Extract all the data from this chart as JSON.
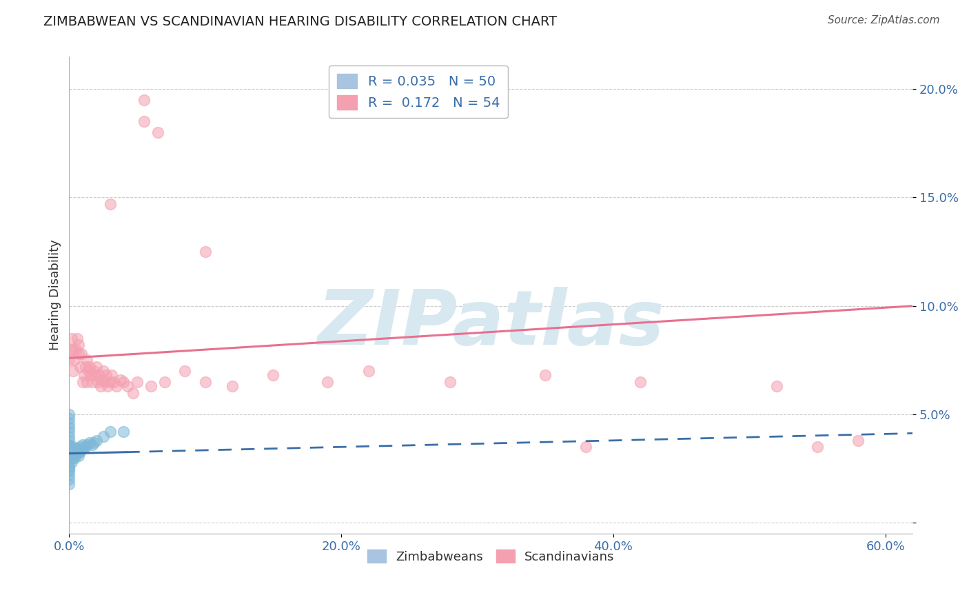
{
  "title": "ZIMBABWEAN VS SCANDINAVIAN HEARING DISABILITY CORRELATION CHART",
  "source": "Source: ZipAtlas.com",
  "xlim": [
    0.0,
    0.62
  ],
  "ylim": [
    -0.005,
    0.215
  ],
  "ylabel": "Hearing Disability",
  "legend_entries": [
    {
      "label": "R = 0.035   N = 50",
      "color": "#a8c4e0"
    },
    {
      "label": "R =  0.172   N = 54",
      "color": "#f4a0b0"
    }
  ],
  "zimbabwean_x": [
    0.0,
    0.0,
    0.0,
    0.0,
    0.0,
    0.0,
    0.0,
    0.0,
    0.0,
    0.0,
    0.0,
    0.0,
    0.0,
    0.0,
    0.0,
    0.0,
    0.0,
    0.0,
    0.0,
    0.0,
    0.001,
    0.001,
    0.002,
    0.002,
    0.002,
    0.003,
    0.003,
    0.003,
    0.004,
    0.004,
    0.005,
    0.005,
    0.006,
    0.006,
    0.007,
    0.007,
    0.008,
    0.008,
    0.009,
    0.01,
    0.01,
    0.012,
    0.013,
    0.015,
    0.017,
    0.018,
    0.02,
    0.025,
    0.03,
    0.04
  ],
  "zimbabwean_y": [
    0.025,
    0.028,
    0.032,
    0.034,
    0.036,
    0.038,
    0.04,
    0.042,
    0.044,
    0.046,
    0.048,
    0.05,
    0.022,
    0.024,
    0.026,
    0.03,
    0.033,
    0.035,
    0.02,
    0.018,
    0.032,
    0.035,
    0.028,
    0.031,
    0.034,
    0.03,
    0.032,
    0.035,
    0.03,
    0.033,
    0.032,
    0.034,
    0.032,
    0.034,
    0.031,
    0.033,
    0.033,
    0.035,
    0.034,
    0.034,
    0.036,
    0.035,
    0.036,
    0.037,
    0.036,
    0.037,
    0.038,
    0.04,
    0.042,
    0.042
  ],
  "scandinavian_x": [
    0.0,
    0.001,
    0.002,
    0.003,
    0.003,
    0.004,
    0.005,
    0.006,
    0.007,
    0.007,
    0.008,
    0.009,
    0.01,
    0.011,
    0.012,
    0.013,
    0.013,
    0.014,
    0.015,
    0.016,
    0.017,
    0.018,
    0.019,
    0.02,
    0.021,
    0.022,
    0.023,
    0.024,
    0.025,
    0.026,
    0.027,
    0.028,
    0.03,
    0.031,
    0.033,
    0.035,
    0.038,
    0.04,
    0.043,
    0.047,
    0.05,
    0.06,
    0.07,
    0.085,
    0.1,
    0.12,
    0.15,
    0.19,
    0.22,
    0.28,
    0.35,
    0.42,
    0.52,
    0.58
  ],
  "scandinavian_y": [
    0.075,
    0.08,
    0.085,
    0.07,
    0.08,
    0.075,
    0.08,
    0.085,
    0.078,
    0.082,
    0.072,
    0.078,
    0.065,
    0.068,
    0.072,
    0.075,
    0.065,
    0.07,
    0.072,
    0.068,
    0.065,
    0.07,
    0.068,
    0.072,
    0.065,
    0.068,
    0.063,
    0.066,
    0.07,
    0.065,
    0.068,
    0.063,
    0.065,
    0.068,
    0.065,
    0.063,
    0.066,
    0.065,
    0.063,
    0.06,
    0.065,
    0.063,
    0.065,
    0.07,
    0.065,
    0.063,
    0.068,
    0.065,
    0.07,
    0.065,
    0.068,
    0.065,
    0.063,
    0.038
  ],
  "scan_outliers_x": [
    0.03,
    0.055,
    0.055,
    0.065,
    0.1,
    0.38,
    0.55
  ],
  "scan_outliers_y": [
    0.147,
    0.195,
    0.185,
    0.18,
    0.125,
    0.035,
    0.035
  ],
  "zim_color": "#7EB8D8",
  "scan_color": "#F4A0B0",
  "zim_line_color": "#3B6EA8",
  "scan_line_color": "#E87090",
  "background_color": "#ffffff",
  "grid_color": "#cccccc",
  "watermark_text": "ZIPatlas",
  "watermark_color": "#d8e8f0"
}
